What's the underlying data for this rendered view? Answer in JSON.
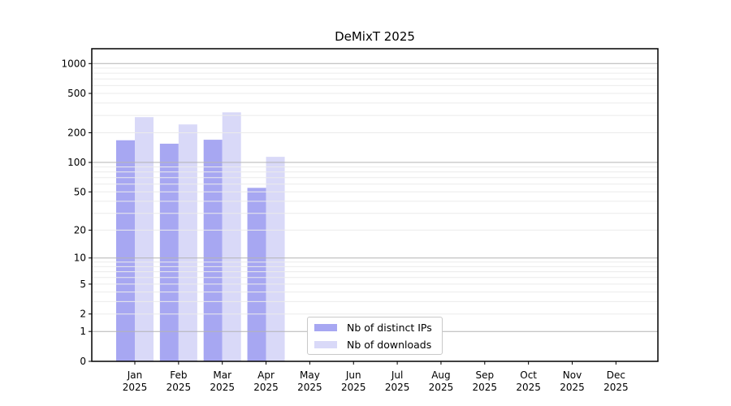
{
  "chart_data": {
    "type": "bar",
    "title": "DeMixT 2025",
    "x_axis": {
      "months": [
        "Jan",
        "Feb",
        "Mar",
        "Apr",
        "May",
        "Jun",
        "Jul",
        "Aug",
        "Sep",
        "Oct",
        "Nov",
        "Dec"
      ],
      "year": "2025"
    },
    "y_axis": {
      "scale": "log10(1+x)",
      "ticks": [
        0,
        1,
        2,
        5,
        10,
        20,
        50,
        100,
        200,
        500,
        1000
      ],
      "major_gridlines": [
        1,
        10,
        100,
        1000
      ],
      "ylim": [
        0,
        1412
      ]
    },
    "series": [
      {
        "name": "Nb of distinct IPs",
        "color": "#a7a7f2",
        "values": [
          168,
          155,
          170,
          55,
          null,
          null,
          null,
          null,
          null,
          null,
          null,
          null
        ]
      },
      {
        "name": "Nb of downloads",
        "color": "#d9d9f8",
        "values": [
          288,
          243,
          322,
          114,
          null,
          null,
          null,
          null,
          null,
          null,
          null,
          null
        ]
      }
    ],
    "legend_position": "lower-center",
    "colors": {
      "frame": "#000000",
      "major_grid": "#b4b4b4",
      "minor_grid": "#ebebeb",
      "text": "#000000",
      "background": "#ffffff"
    }
  }
}
